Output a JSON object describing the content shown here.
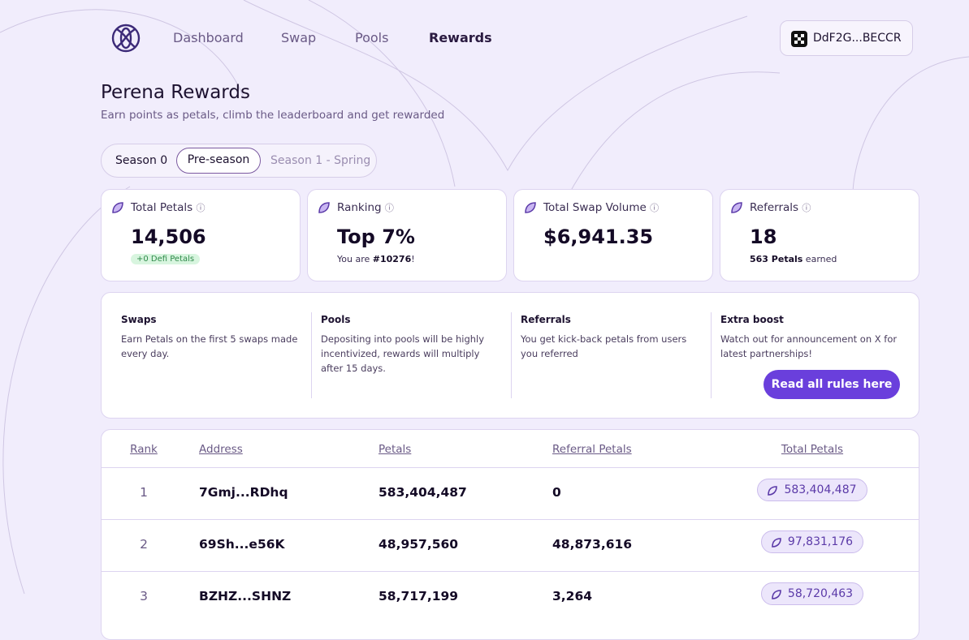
{
  "nav": {
    "links": [
      "Dashboard",
      "Swap",
      "Pools",
      "Rewards"
    ],
    "active": 3,
    "wallet": "DdF2G...BECCR"
  },
  "header": {
    "title": "Perena Rewards",
    "subtitle": "Earn points as petals, climb the leaderboard and get rewarded"
  },
  "seasons": {
    "items": [
      "Season 0",
      "Pre-season",
      "Season 1 - Spring"
    ],
    "active": 1
  },
  "stats": [
    {
      "label": "Total Petals",
      "value": "14,506",
      "note": "+0 Defi Petals"
    },
    {
      "label": "Ranking",
      "value": "Top 7%",
      "note_parts": [
        "You are ",
        "#10276",
        "!"
      ]
    },
    {
      "label": "Total Swap Volume",
      "value": "$6,941.35"
    },
    {
      "label": "Referrals",
      "value": "18",
      "note_parts": [
        "563 Petals",
        " earned"
      ]
    }
  ],
  "rules": {
    "items": [
      {
        "title": "Swaps",
        "text": "Earn Petals on the first 5 swaps made every day."
      },
      {
        "title": "Pools",
        "text": "Depositing into pools will be highly incentivized, rewards will multiply after 15 days."
      },
      {
        "title": "Referrals",
        "text": "You get kick-back petals from users you referred"
      },
      {
        "title": "Extra boost",
        "text": "Watch out for announcement on X for latest partnerships!"
      }
    ],
    "button": "Read all rules here"
  },
  "table": {
    "columns": [
      "Rank",
      "Address",
      "Petals",
      "Referral Petals",
      "Total Petals"
    ],
    "rows": [
      [
        "1",
        "7Gmj...RDhq",
        "583,404,487",
        "0",
        "583,404,487"
      ],
      [
        "2",
        "69Sh...e56K",
        "48,957,560",
        "48,873,616",
        "97,831,176"
      ],
      [
        "3",
        "BZHZ...SHNZ",
        "58,717,199",
        "3,264",
        "58,720,463"
      ]
    ]
  }
}
